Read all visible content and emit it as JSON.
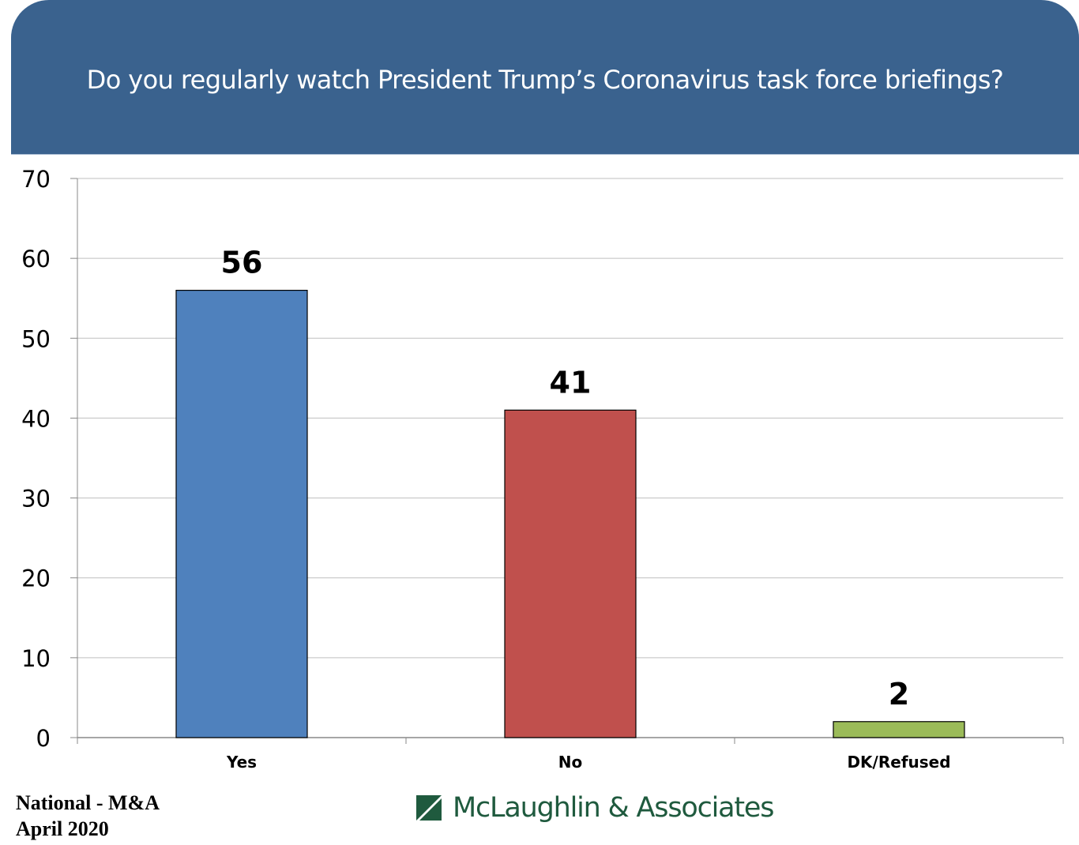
{
  "header": {
    "title": "Do you regularly watch President Trump’s Coronavirus task force briefings?"
  },
  "chart_data": {
    "type": "bar",
    "title": "Do you regularly watch President Trump’s Coronavirus task force briefings?",
    "xlabel": "",
    "ylabel": "",
    "categories": [
      "Yes",
      "No",
      "DK/Refused"
    ],
    "values": [
      56,
      41,
      2
    ],
    "data_labels": [
      "56",
      "41",
      "2"
    ],
    "colors": [
      "#4f81bd",
      "#c0504d",
      "#9bbb59"
    ],
    "ylim": [
      0,
      70
    ],
    "yticks": [
      0,
      10,
      20,
      30,
      40,
      50,
      60,
      70
    ],
    "ytick_labels": [
      "0",
      "10",
      "20",
      "30",
      "40",
      "50",
      "60",
      "70"
    ],
    "grid": true,
    "legend": "none"
  },
  "footer": {
    "source_line1": "National - M&A",
    "source_line2": "April 2020",
    "logo_text": "McLaughlin & Associates",
    "logo_color": "#1f5a3e"
  }
}
